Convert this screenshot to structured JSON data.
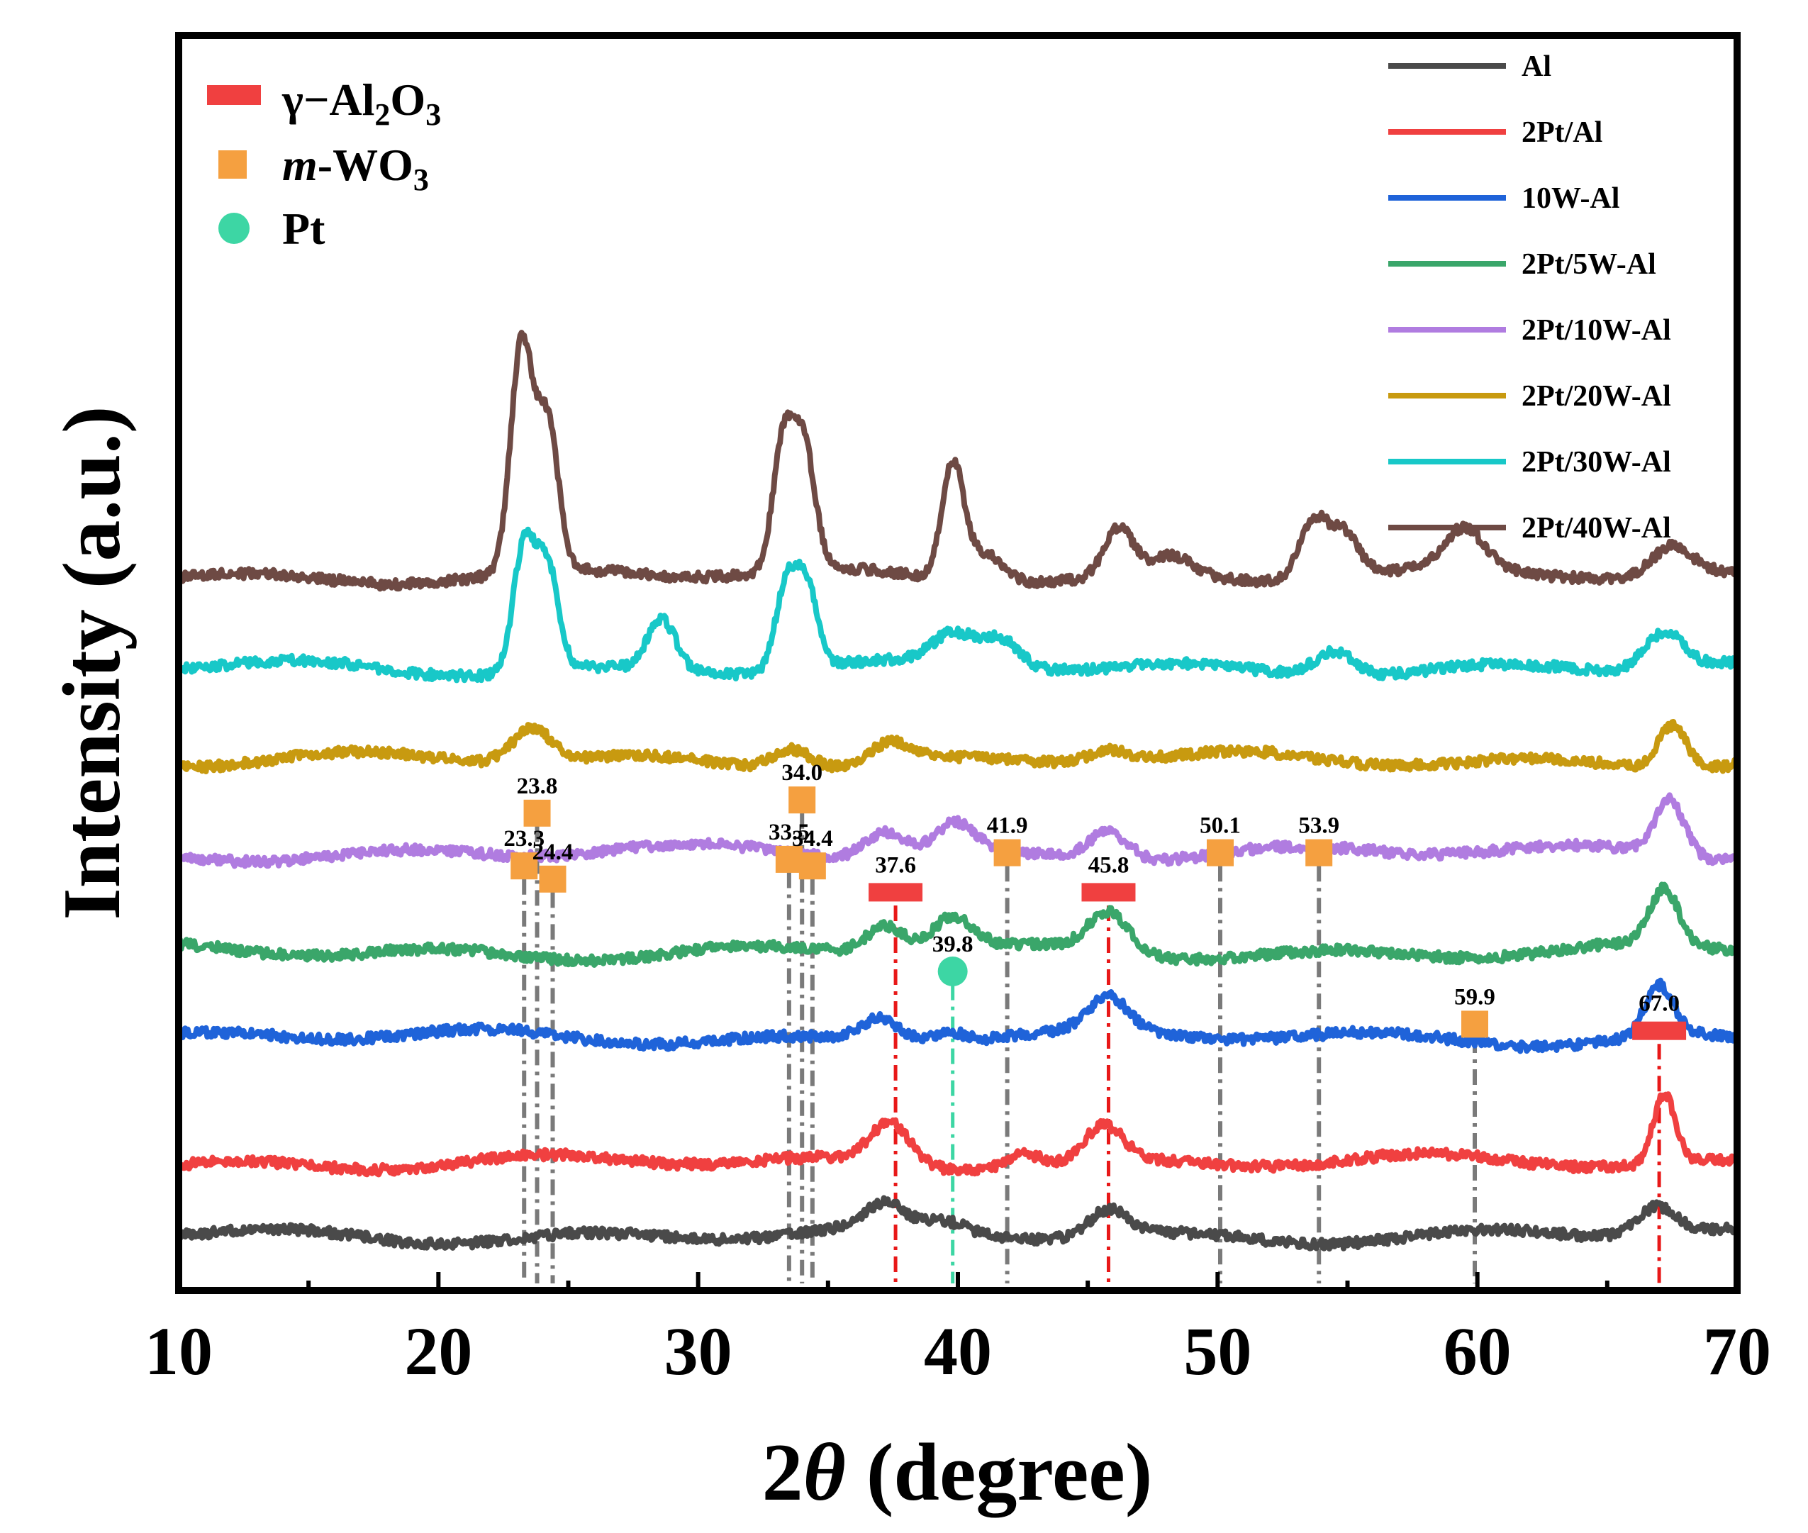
{
  "chart_data": {
    "type": "line",
    "title": "",
    "xlabel_italic": "θ",
    "xlabel_prefix": "2",
    "xlabel_suffix": " (degree)",
    "ylabel": "Intensity (a.u.)",
    "xlim": [
      10,
      70
    ],
    "xticks": [
      10,
      20,
      30,
      40,
      50,
      60,
      70
    ],
    "xtick_labels": [
      "10",
      "20",
      "30",
      "40",
      "50",
      "60",
      "70"
    ],
    "grid": false,
    "legend_position": "top-right",
    "phase_legend_position": "top-left",
    "series": [
      {
        "name": "Al",
        "color": "#4a4a4a",
        "offset": 0.0,
        "peaks": [
          [
            37.2,
            0.18
          ],
          [
            39.6,
            0.07
          ],
          [
            45.8,
            0.2
          ],
          [
            66.9,
            0.22
          ]
        ]
      },
      {
        "name": "2Pt/Al",
        "color": "#f04040",
        "offset": 0.55,
        "peaks": [
          [
            37.4,
            0.3
          ],
          [
            42.5,
            0.12
          ],
          [
            45.6,
            0.28
          ],
          [
            67.2,
            0.52
          ]
        ]
      },
      {
        "name": "10W-Al",
        "color": "#1f63d9",
        "offset": 1.5,
        "peaks": [
          [
            37.0,
            0.18
          ],
          [
            39.6,
            0.08
          ],
          [
            45.8,
            0.25
          ],
          [
            67.0,
            0.38
          ]
        ]
      },
      {
        "name": "2Pt/5W-Al",
        "color": "#3aa66a",
        "offset": 2.15,
        "peaks": [
          [
            37.2,
            0.2
          ],
          [
            39.8,
            0.25
          ],
          [
            45.8,
            0.3
          ],
          [
            67.2,
            0.42
          ]
        ]
      },
      {
        "name": "2Pt/10W-Al",
        "color": "#b07ce0",
        "offset": 2.9,
        "peaks": [
          [
            37.2,
            0.18
          ],
          [
            39.9,
            0.22
          ],
          [
            45.8,
            0.22
          ],
          [
            67.4,
            0.42
          ]
        ]
      },
      {
        "name": "2Pt/20W-Al",
        "color": "#c89a10",
        "offset": 3.6,
        "peaks": [
          [
            23.6,
            0.25
          ],
          [
            33.6,
            0.15
          ],
          [
            37.4,
            0.15
          ],
          [
            45.8,
            0.1
          ],
          [
            67.5,
            0.32
          ]
        ]
      },
      {
        "name": "2Pt/30W-Al",
        "color": "#18c8c8",
        "offset": 4.3,
        "peaks": [
          [
            23.3,
            0.95
          ],
          [
            24.2,
            0.78
          ],
          [
            28.6,
            0.38
          ],
          [
            33.4,
            0.65
          ],
          [
            34.2,
            0.6
          ],
          [
            39.8,
            0.22
          ],
          [
            41.6,
            0.22
          ],
          [
            54.5,
            0.2
          ],
          [
            67.2,
            0.28
          ]
        ]
      },
      {
        "name": "2Pt/40W-Al",
        "color": "#6e4a44",
        "offset": 5.0,
        "peaks": [
          [
            23.2,
            1.72
          ],
          [
            24.2,
            1.12
          ],
          [
            33.3,
            0.98
          ],
          [
            34.1,
            0.88
          ],
          [
            39.8,
            0.85
          ],
          [
            41.0,
            0.22
          ],
          [
            46.2,
            0.36
          ],
          [
            48.2,
            0.15
          ],
          [
            53.7,
            0.45
          ],
          [
            54.9,
            0.32
          ],
          [
            59.5,
            0.3
          ],
          [
            67.5,
            0.22
          ]
        ]
      }
    ],
    "phase_legend": [
      {
        "name_prefix": "γ−Al",
        "sub1": "2",
        "mid": "O",
        "sub2": "3",
        "marker": "red-bar",
        "color": "#f04040"
      },
      {
        "name_italic": "m",
        "name_rest": "-WO",
        "sub2": "3",
        "marker": "orange-square",
        "color": "#f5a040"
      },
      {
        "name": "Pt",
        "marker": "green-circle",
        "color": "#3dd6a4"
      }
    ],
    "annotations": [
      {
        "x": 23.3,
        "label": "23.3",
        "phase": "m-WO3",
        "marker_level": 2.8
      },
      {
        "x": 23.8,
        "label": "23.8",
        "phase": "m-WO3",
        "marker_level": 3.2
      },
      {
        "x": 24.4,
        "label": "24.4",
        "phase": "m-WO3",
        "marker_level": 2.7
      },
      {
        "x": 33.5,
        "label": "33.5",
        "phase": "m-WO3",
        "marker_level": 2.85
      },
      {
        "x": 34.0,
        "label": "34.0",
        "phase": "m-WO3",
        "marker_level": 3.3
      },
      {
        "x": 34.4,
        "label": "34.4",
        "phase": "m-WO3",
        "marker_level": 2.8
      },
      {
        "x": 37.6,
        "label": "37.6",
        "phase": "γ-Al2O3",
        "marker_level": 2.6
      },
      {
        "x": 39.8,
        "label": "39.8",
        "phase": "Pt",
        "marker_level": 2.0
      },
      {
        "x": 41.9,
        "label": "41.9",
        "phase": "m-WO3",
        "marker_level": 2.9
      },
      {
        "x": 45.8,
        "label": "45.8",
        "phase": "γ-Al2O3",
        "marker_level": 2.6
      },
      {
        "x": 50.1,
        "label": "50.1",
        "phase": "m-WO3",
        "marker_level": 2.9
      },
      {
        "x": 53.9,
        "label": "53.9",
        "phase": "m-WO3",
        "marker_level": 2.9
      },
      {
        "x": 59.9,
        "label": "59.9",
        "phase": "m-WO3",
        "marker_level": 1.6
      },
      {
        "x": 67.0,
        "label": "67.0",
        "phase": "γ-Al2O3",
        "marker_level": 1.55
      }
    ],
    "reference_lines": [
      {
        "x": 23.3,
        "color": "#7a7a7a",
        "top_level": 2.7
      },
      {
        "x": 23.8,
        "color": "#7a7a7a",
        "top_level": 3.1
      },
      {
        "x": 24.4,
        "color": "#7a7a7a",
        "top_level": 2.6
      },
      {
        "x": 33.5,
        "color": "#7a7a7a",
        "top_level": 2.75
      },
      {
        "x": 34.0,
        "color": "#7a7a7a",
        "top_level": 3.2
      },
      {
        "x": 34.4,
        "color": "#7a7a7a",
        "top_level": 2.7
      },
      {
        "x": 37.6,
        "color": "#e81818",
        "top_level": 2.5
      },
      {
        "x": 39.8,
        "color": "#3dd6a4",
        "top_level": 1.9
      },
      {
        "x": 41.9,
        "color": "#7a7a7a",
        "top_level": 2.8
      },
      {
        "x": 45.8,
        "color": "#e81818",
        "top_level": 2.5
      },
      {
        "x": 50.1,
        "color": "#7a7a7a",
        "top_level": 2.8
      },
      {
        "x": 53.9,
        "color": "#7a7a7a",
        "top_level": 2.8
      },
      {
        "x": 59.9,
        "color": "#7a7a7a",
        "top_level": 1.5
      },
      {
        "x": 67.0,
        "color": "#e81818",
        "top_level": 1.45
      }
    ]
  }
}
